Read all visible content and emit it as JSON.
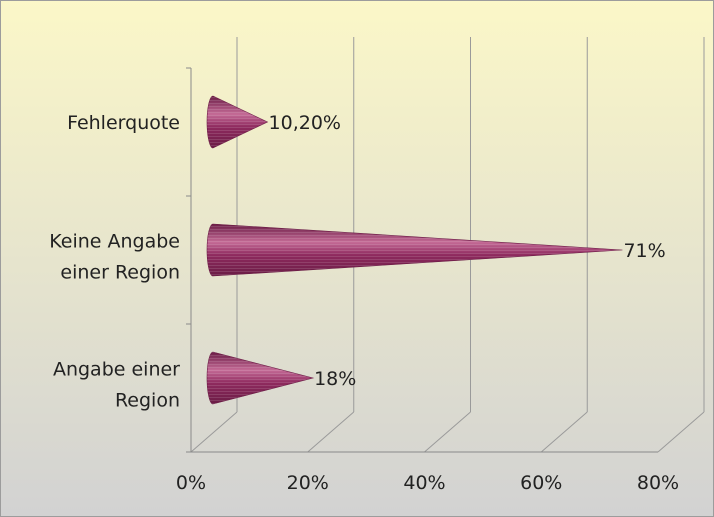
{
  "chart_data": {
    "type": "bar",
    "orientation": "horizontal",
    "style": "3d-cone",
    "categories": [
      "Angabe einer Region",
      "Keine Angabe einer Region",
      "Fehlerquote"
    ],
    "category_label_lines": [
      [
        "Angabe einer",
        "Region"
      ],
      [
        "Keine Angabe",
        "einer Region"
      ],
      [
        "Fehlerquote"
      ]
    ],
    "values": [
      18,
      71,
      10.2
    ],
    "data_labels": [
      "18%",
      "71%",
      "10,20%"
    ],
    "xlim": [
      0,
      80
    ],
    "x_ticks": [
      0,
      20,
      40,
      60,
      80
    ],
    "x_tick_labels": [
      "0%",
      "20%",
      "40%",
      "60%",
      "80%"
    ],
    "grid": true,
    "legend": "none",
    "colors": {
      "bar": "#8e2a5e",
      "bar_dark": "#6a1c45",
      "bar_light": "#c46b96",
      "background_top": "#fbf7c8",
      "background_bottom": "#d2d2d2"
    }
  }
}
